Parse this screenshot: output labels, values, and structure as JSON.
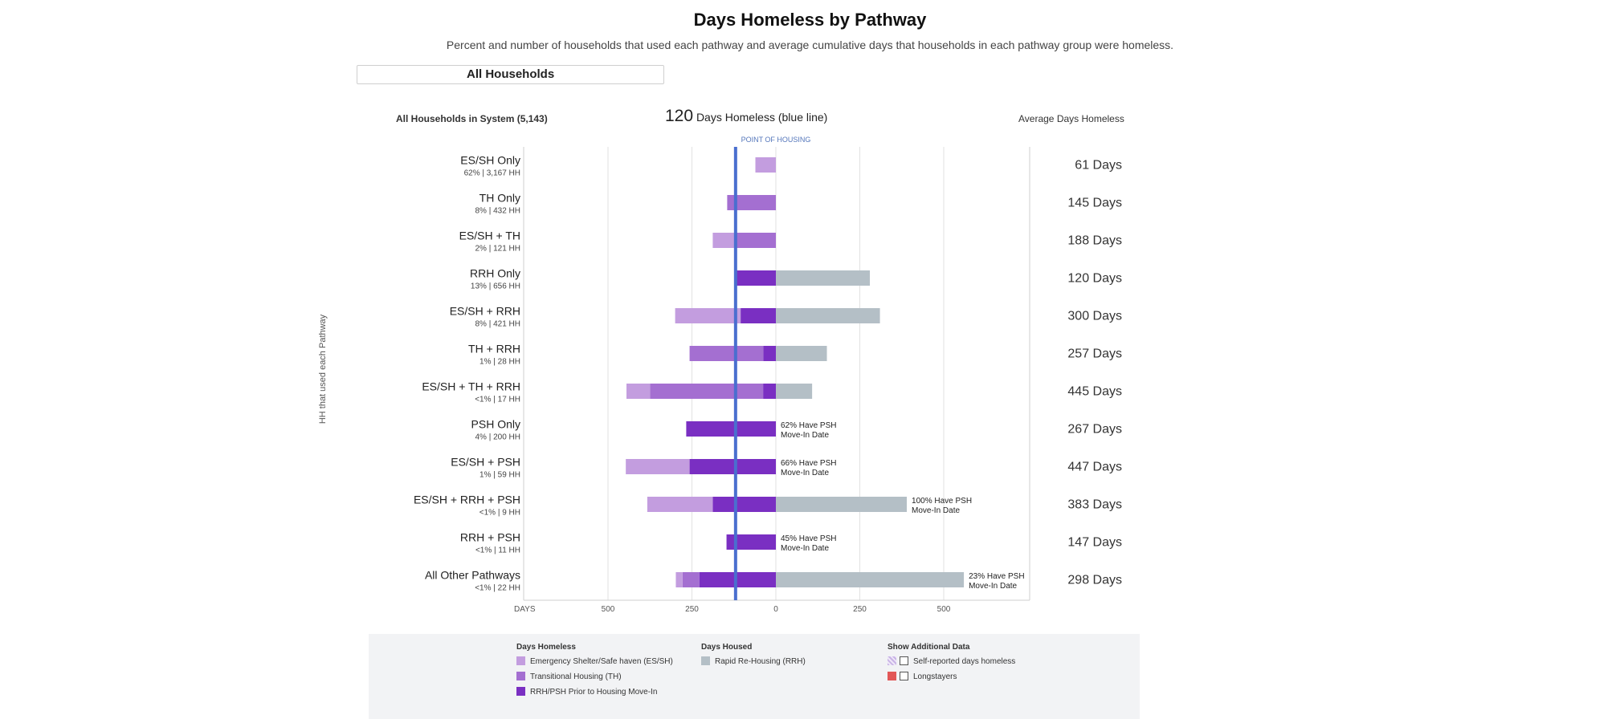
{
  "page": {
    "title": "Days Homeless by Pathway",
    "subtitle": "Percent and number of households that used each pathway and average cumulative days that households in each pathway group were homeless."
  },
  "selector": {
    "value": "All Households"
  },
  "header": {
    "left": "All Households in System (5,143)",
    "mid_value": "120",
    "mid_label": "Days Homeless (blue line)",
    "right": "Average Days Homeless"
  },
  "point_of_housing_label": "POINT OF HOUSING",
  "yaxis_title": "HH that used each Pathway",
  "colors": {
    "es": "#c39ddf",
    "th": "#a46fd1",
    "rrh": "#7a2fc2",
    "housed": "#b4bfc6",
    "avg_line": "#4a6fcf",
    "longstayers": "#e25757"
  },
  "chart_data": {
    "type": "bar",
    "orientation": "horizontal-diverging",
    "xlabel": "DAYS",
    "x_ticks": [
      500,
      250,
      0,
      250,
      500
    ],
    "xlim": [
      -750,
      750
    ],
    "average_line": -120,
    "series_names": [
      "Emergency Shelter/Safe haven (ES/SH)",
      "Transitional Housing (TH)",
      "RRH/PSH Prior to Housing Move-In",
      "Rapid Re-Housing (RRH)"
    ],
    "categories": [
      {
        "name": "ES/SH Only",
        "sub": "62% | 3,167 HH",
        "es": 61,
        "th": 0,
        "rrh": 0,
        "housed": 0,
        "psh_note": "",
        "avg": "61 Days"
      },
      {
        "name": "TH Only",
        "sub": "8% | 432 HH",
        "es": 0,
        "th": 145,
        "rrh": 0,
        "housed": 0,
        "psh_note": "",
        "avg": "145 Days"
      },
      {
        "name": "ES/SH + TH",
        "sub": "2% | 121 HH",
        "es": 66,
        "th": 122,
        "rrh": 0,
        "housed": 0,
        "psh_note": "",
        "avg": "188 Days"
      },
      {
        "name": "RRH Only",
        "sub": "13% | 656 HH",
        "es": 0,
        "th": 0,
        "rrh": 120,
        "housed": 280,
        "psh_note": "",
        "avg": "120 Days"
      },
      {
        "name": "ES/SH + RRH",
        "sub": "8% | 421 HH",
        "es": 195,
        "th": 0,
        "rrh": 105,
        "housed": 310,
        "psh_note": "",
        "avg": "300 Days"
      },
      {
        "name": "TH + RRH",
        "sub": "1% | 28 HH",
        "es": 0,
        "th": 220,
        "rrh": 37,
        "housed": 152,
        "psh_note": "",
        "avg": "257 Days"
      },
      {
        "name": "ES/SH + TH + RRH",
        "sub": "<1% | 17 HH",
        "es": 70,
        "th": 337,
        "rrh": 38,
        "housed": 108,
        "psh_note": "",
        "avg": "445 Days"
      },
      {
        "name": "PSH Only",
        "sub": "4% | 200 HH",
        "es": 0,
        "th": 0,
        "rrh": 267,
        "housed": 0,
        "psh_note": "62% Have PSH\nMove-In Date",
        "avg": "267 Days"
      },
      {
        "name": "ES/SH + PSH",
        "sub": "1% | 59 HH",
        "es": 190,
        "th": 0,
        "rrh": 257,
        "housed": 0,
        "psh_note": "66% Have PSH\nMove-In Date",
        "avg": "447 Days"
      },
      {
        "name": "ES/SH + RRH + PSH",
        "sub": "<1% | 9 HH",
        "es": 195,
        "th": 0,
        "rrh": 188,
        "housed": 390,
        "psh_note": "100% Have PSH\nMove-In Date",
        "avg": "383 Days"
      },
      {
        "name": "RRH + PSH",
        "sub": "<1% | 11 HH",
        "es": 0,
        "th": 0,
        "rrh": 147,
        "housed": 0,
        "psh_note": "45% Have PSH\nMove-In Date",
        "avg": "147 Days"
      },
      {
        "name": "All Other Pathways",
        "sub": "<1% | 22 HH",
        "es": 20,
        "th": 50,
        "rrh": 228,
        "housed": 560,
        "psh_note": "23% Have PSH\nMove-In Date",
        "avg": "298 Days"
      }
    ]
  },
  "legend": {
    "days_homeless_title": "Days Homeless",
    "days_homeless_items": [
      "Emergency Shelter/Safe haven (ES/SH)",
      "Transitional Housing (TH)",
      "RRH/PSH Prior to Housing Move-In"
    ],
    "days_housed_title": "Days Housed",
    "days_housed_items": [
      "Rapid Re-Housing (RRH)"
    ],
    "additional_title": "Show Additional Data",
    "additional_items": [
      "Self-reported days homeless",
      "Longstayers"
    ]
  }
}
